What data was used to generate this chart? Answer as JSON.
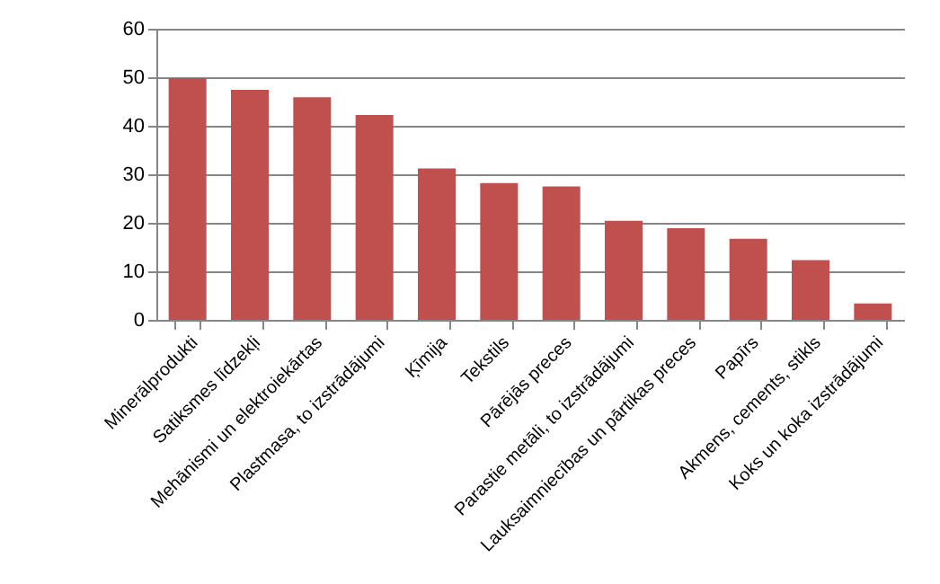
{
  "chart_data": {
    "type": "bar",
    "categories": [
      "Minerālprodukti",
      "Satiksmes līdzekļi",
      "Mehānismi un elektroiekārtas",
      "Plastmasa, to izstrādājumi",
      "Ķīmija",
      "Tekstils",
      "Pārējās preces",
      "Parastie metāli, to izstrādājumi",
      "Lauksaimniecības un pārtikas preces",
      "Papīrs",
      "Akmens, cements, stikls",
      "Koks un koka izstrādājumi"
    ],
    "values": [
      49.8,
      47.4,
      45.9,
      42.2,
      31.2,
      28.2,
      27.5,
      20.4,
      18.9,
      16.7,
      12.3,
      3.4
    ],
    "color": "#c0504d",
    "ylim": [
      0,
      60
    ],
    "yticks": [
      0,
      10,
      20,
      30,
      40,
      50,
      60
    ],
    "grid": "y"
  }
}
